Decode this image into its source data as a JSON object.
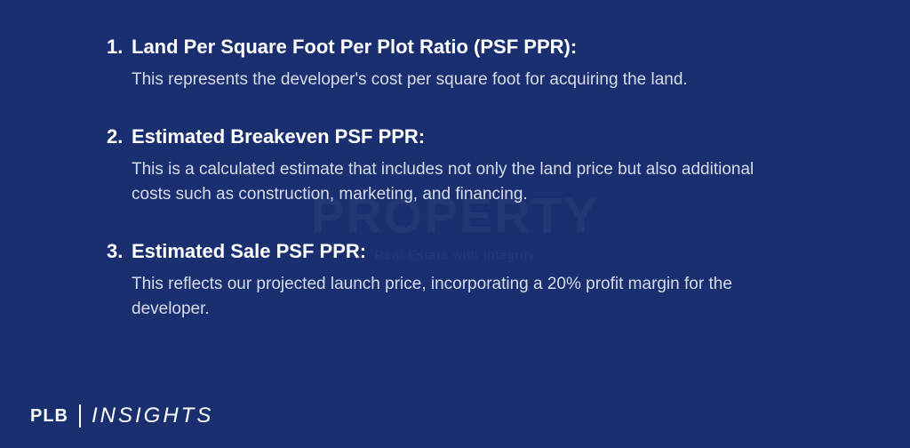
{
  "background_color": "#1a2f6f",
  "text_color_heading": "#ffffff",
  "text_color_body": "#d6dceb",
  "watermark": {
    "main": "PROPERTY",
    "sub": "Real Estate with Integrity"
  },
  "items": [
    {
      "number": "1.",
      "title": "Land Per Square Foot Per Plot Ratio (PSF PPR):",
      "description": "This represents the developer's cost per square foot for acquiring the land."
    },
    {
      "number": "2.",
      "title": "Estimated Breakeven PSF PPR:",
      "description": "This is a calculated estimate that includes not only the land price but also additional costs such as construction, marketing, and financing."
    },
    {
      "number": "3.",
      "title": "Estimated Sale PSF PPR:",
      "description": "This reflects our projected launch price, incorporating a 20% profit margin for the developer."
    }
  ],
  "logo": {
    "prefix": "PLB",
    "main": "INSIGHTS"
  }
}
